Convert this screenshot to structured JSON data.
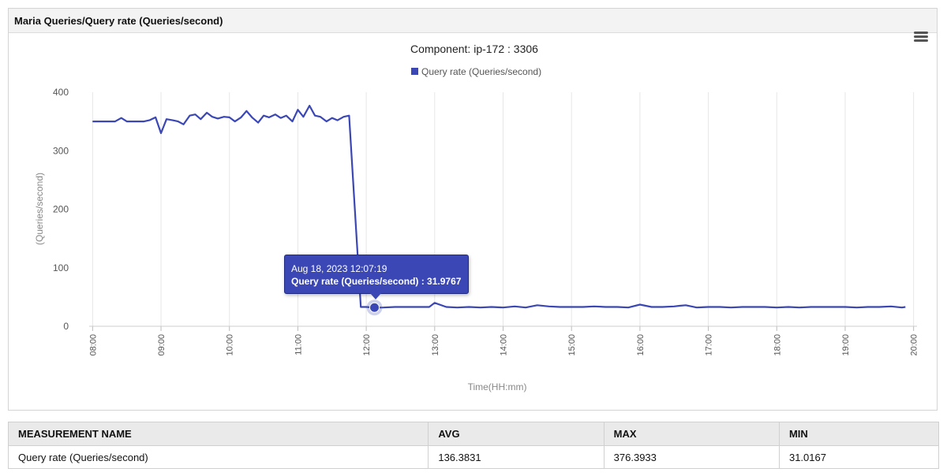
{
  "panel": {
    "title": "Maria Queries/Query rate (Queries/second)"
  },
  "chart_data": {
    "type": "line",
    "title": "Component: ip-172                    : 3306",
    "xlabel": "Time(HH:mm)",
    "ylabel": "(Queries/second)",
    "ylim": [
      0,
      400
    ],
    "yticks": [
      0,
      100,
      200,
      300,
      400
    ],
    "xticks": [
      "08:00",
      "09:00",
      "10:00",
      "11:00",
      "12:00",
      "13:00",
      "14:00",
      "15:00",
      "16:00",
      "17:00",
      "18:00",
      "19:00",
      "20:00"
    ],
    "xlim_hours": [
      7.95,
      20.05
    ],
    "grid": "vertical",
    "legend_position": "top-center",
    "color": "#3a47b4",
    "series": [
      {
        "name": "Query rate (Queries/second)",
        "x": [
          8.0,
          8.08,
          8.17,
          8.25,
          8.33,
          8.42,
          8.5,
          8.58,
          8.67,
          8.75,
          8.83,
          8.92,
          9.0,
          9.04,
          9.08,
          9.17,
          9.25,
          9.33,
          9.42,
          9.5,
          9.58,
          9.67,
          9.75,
          9.83,
          9.92,
          10.0,
          10.08,
          10.17,
          10.25,
          10.33,
          10.42,
          10.5,
          10.58,
          10.67,
          10.75,
          10.83,
          10.92,
          11.0,
          11.08,
          11.17,
          11.25,
          11.33,
          11.42,
          11.5,
          11.58,
          11.67,
          11.75,
          11.92,
          12.0,
          12.12,
          12.25,
          12.42,
          12.58,
          12.75,
          12.92,
          13.0,
          13.17,
          13.33,
          13.5,
          13.67,
          13.83,
          14.0,
          14.17,
          14.33,
          14.5,
          14.67,
          14.83,
          15.0,
          15.17,
          15.33,
          15.5,
          15.58,
          15.67,
          15.83,
          16.0,
          16.17,
          16.33,
          16.5,
          16.58,
          16.67,
          16.83,
          17.0,
          17.17,
          17.33,
          17.5,
          17.67,
          17.83,
          18.0,
          18.17,
          18.33,
          18.5,
          18.67,
          18.83,
          19.0,
          19.17,
          19.33,
          19.5,
          19.67,
          19.83,
          19.88
        ],
        "y": [
          350,
          350,
          350,
          350,
          350,
          356,
          350,
          350,
          350,
          350,
          352,
          357,
          330,
          342,
          354,
          352,
          350,
          345,
          360,
          362,
          354,
          365,
          358,
          355,
          358,
          357,
          350,
          357,
          368,
          357,
          348,
          360,
          357,
          362,
          356,
          360,
          350,
          370,
          358,
          377,
          360,
          358,
          350,
          356,
          352,
          358,
          360,
          33,
          33,
          31.9767,
          32,
          33,
          33,
          33,
          33,
          40,
          33,
          32,
          33,
          32,
          33,
          32,
          34,
          32,
          36,
          34,
          33,
          33,
          33,
          34,
          33,
          33,
          33,
          32,
          37,
          33,
          33,
          34,
          35,
          36,
          32,
          33,
          33,
          32,
          33,
          33,
          33,
          32,
          33,
          32,
          33,
          33,
          33,
          33,
          32,
          33,
          33,
          34,
          32,
          33
        ]
      }
    ],
    "tooltip": {
      "x": 12.12,
      "date": "Aug 18, 2023 12:07:19",
      "label": "Query rate (Queries/second) : 31.9767",
      "value": 31.9767
    }
  },
  "table": {
    "headers": [
      "MEASUREMENT NAME",
      "AVG",
      "MAX",
      "MIN"
    ],
    "rows": [
      [
        "Query rate (Queries/second)",
        "136.3831",
        "376.3933",
        "31.0167"
      ]
    ]
  }
}
